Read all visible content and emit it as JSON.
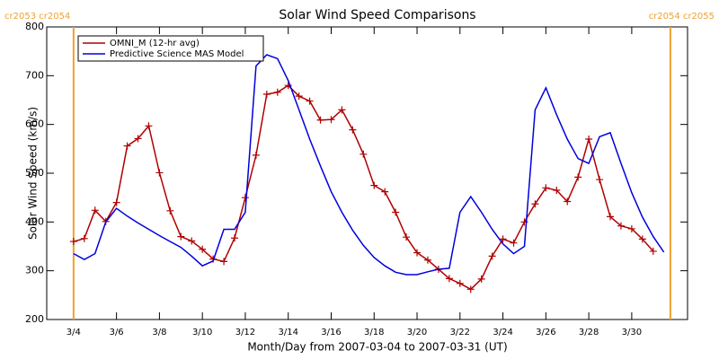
{
  "chart_data": {
    "type": "line",
    "title": "Solar Wind Speed Comparisons",
    "x_label": "Month/Day from 2007-03-04 to 2007-03-31 (UT)",
    "y_label": "Solar Wind Speed (km/s)",
    "xlim": [
      -1.25,
      28.6
    ],
    "xticks": [
      {
        "value": 0,
        "label": "3/4"
      },
      {
        "value": 2,
        "label": "3/6"
      },
      {
        "value": 4,
        "label": "3/8"
      },
      {
        "value": 6,
        "label": "3/10"
      },
      {
        "value": 8,
        "label": "3/12"
      },
      {
        "value": 10,
        "label": "3/14"
      },
      {
        "value": 12,
        "label": "3/16"
      },
      {
        "value": 14,
        "label": "3/18"
      },
      {
        "value": 16,
        "label": "3/20"
      },
      {
        "value": 18,
        "label": "3/22"
      },
      {
        "value": 20,
        "label": "3/24"
      },
      {
        "value": 22,
        "label": "3/26"
      },
      {
        "value": 24,
        "label": "3/28"
      },
      {
        "value": 26,
        "label": "3/30"
      }
    ],
    "ylim": [
      200,
      800
    ],
    "yticks": [
      200,
      300,
      400,
      500,
      600,
      700,
      800
    ],
    "legend": "upper left",
    "series": [
      {
        "name": "OMNI_M (12-hr avg)",
        "color": "#b00000",
        "marker": "plus",
        "x": [
          0,
          0.5,
          1,
          1.5,
          2,
          2.5,
          3,
          3.5,
          4,
          4.5,
          5,
          5.5,
          6,
          6.5,
          7,
          7.5,
          8,
          8.5,
          9,
          9.5,
          10,
          10.5,
          11,
          11.5,
          12,
          12.5,
          13,
          13.5,
          14,
          14.5,
          15,
          15.5,
          16,
          16.5,
          17,
          17.5,
          18,
          18.5,
          19,
          19.5,
          20,
          20.5,
          21,
          21.5,
          22,
          22.5,
          23,
          23.5,
          24,
          24.5,
          25,
          25.5,
          26,
          26.5,
          27
        ],
        "values": [
          360,
          366,
          424,
          401,
          440,
          556,
          571,
          597,
          501,
          423,
          370,
          361,
          344,
          324,
          319,
          367,
          450,
          537,
          662,
          666,
          680,
          658,
          648,
          609,
          610,
          630,
          589,
          539,
          475,
          462,
          420,
          369,
          337,
          322,
          303,
          284,
          274,
          262,
          283,
          330,
          365,
          357,
          400,
          437,
          470,
          465,
          442,
          492,
          570,
          487,
          411,
          392,
          386,
          365,
          340
        ]
      },
      {
        "name": "Predictive Science MAS Model",
        "color": "#0000dd",
        "x": [
          0,
          0.5,
          1,
          1.5,
          2,
          2.5,
          3,
          3.5,
          4,
          4.5,
          5,
          5.5,
          6,
          6.5,
          7,
          7.5,
          8,
          8.5,
          9,
          9.5,
          10,
          10.5,
          11,
          11.5,
          12,
          12.5,
          13,
          13.5,
          14,
          14.5,
          15,
          15.5,
          16,
          16.5,
          17,
          17.5,
          18,
          18.5,
          19,
          19.5,
          20,
          20.5,
          21,
          21.5,
          22,
          22.5,
          23,
          23.5,
          24,
          24.5,
          25,
          25.5,
          26,
          26.5,
          27,
          27.5
        ],
        "values": [
          335,
          323,
          335,
          400,
          428,
          412,
          398,
          385,
          372,
          360,
          348,
          330,
          310,
          320,
          385,
          385,
          420,
          720,
          743,
          735,
          690,
          630,
          570,
          515,
          462,
          420,
          383,
          352,
          327,
          310,
          297,
          292,
          292,
          298,
          303,
          305,
          420,
          452,
          420,
          385,
          355,
          335,
          350,
          630,
          675,
          620,
          570,
          530,
          520,
          575,
          583,
          520,
          460,
          410,
          370,
          338
        ]
      }
    ],
    "boundaries": [
      {
        "x": 0,
        "label": "cr2053 cr2054",
        "color": "#f0a030"
      },
      {
        "x": 27.8,
        "label": "cr2054 cr2055",
        "color": "#f0a030"
      }
    ]
  }
}
